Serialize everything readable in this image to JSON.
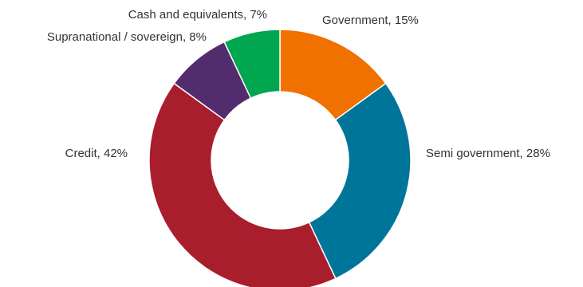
{
  "chart_data": {
    "type": "pie",
    "donut": true,
    "slices": [
      {
        "label": "Government, 15%",
        "category": "Government",
        "value": 15,
        "color": "#f07000"
      },
      {
        "label": "Semi government, 28%",
        "category": "Semi government",
        "value": 28,
        "color": "#00759a"
      },
      {
        "label": "Credit, 42%",
        "category": "Credit",
        "value": 42,
        "color": "#a81e2d"
      },
      {
        "label": "Supranational / sovereign, 8%",
        "category": "Supranational / sovereign",
        "value": 8,
        "color": "#532c6d"
      },
      {
        "label": "Cash and equivalents, 7%",
        "category": "Cash and equivalents",
        "value": 7,
        "color": "#00a650"
      }
    ]
  }
}
